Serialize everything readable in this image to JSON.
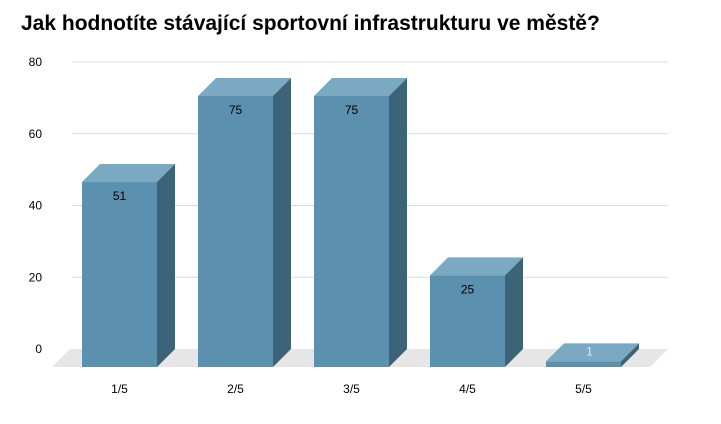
{
  "chart_data": {
    "type": "bar",
    "title": "Jak hodnotíte stávající sportovní infrastrukturu ve městě?",
    "xlabel": "",
    "ylabel": "",
    "categories": [
      "1/5",
      "2/5",
      "3/5",
      "4/5",
      "5/5"
    ],
    "values": [
      51,
      75,
      75,
      25,
      1
    ],
    "value_labels": [
      "51",
      "75",
      "75",
      "25",
      "1"
    ],
    "ylim": [
      0,
      80
    ],
    "yticks": [
      "0",
      "20",
      "40",
      "60",
      "80"
    ],
    "grid": true,
    "legend": "none",
    "style": "3d-column",
    "colors": {
      "bar_front": "#5b90ae",
      "bar_top": "#7ca9c2",
      "bar_side": "#3c6378",
      "floor": "#e6e6e6",
      "grid": "#d9d9d9",
      "text": "#000000"
    }
  }
}
